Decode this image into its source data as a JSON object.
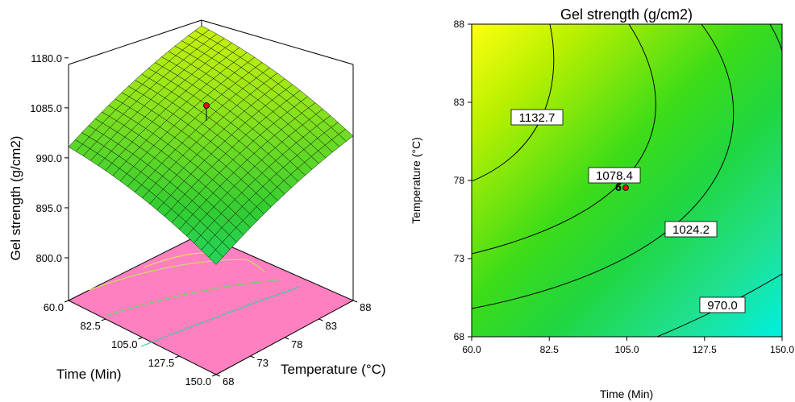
{
  "chart_data": [
    {
      "type": "surface3d",
      "zlabel": "Gel strength (g/cm2)",
      "xlabel": "Time (Min)",
      "ylabel": "Temperature (°C)",
      "z_ticks": [
        "800.0",
        "895.0",
        "990.0",
        "1085.0",
        "1180.0"
      ],
      "x_ticks": [
        "60.0",
        "82.5",
        "105.0",
        "127.5",
        "150.0"
      ],
      "y_ticks": [
        "68",
        "73",
        "78",
        "83",
        "88"
      ],
      "xlim": [
        60,
        150
      ],
      "ylim": [
        68,
        88
      ],
      "zlim": [
        800,
        1180
      ],
      "corner_values": [
        {
          "time": 60,
          "temp": 88,
          "z": 1180
        },
        {
          "time": 150,
          "temp": 88,
          "z": 1040
        },
        {
          "time": 60,
          "temp": 68,
          "z": 1005
        },
        {
          "time": 150,
          "temp": 68,
          "z": 865
        }
      ],
      "design_point": {
        "time": 105,
        "temp": 78,
        "z": 1078.4
      },
      "surface_colors": {
        "high": "#ffff00",
        "mid": "#33cc33",
        "low": "#00ddc8"
      },
      "base_color": "#ff80c0"
    },
    {
      "type": "contour",
      "title": "Gel strength (g/cm2)",
      "xlabel": "Time (Min)",
      "ylabel": "Temperature (°C)",
      "x_ticks": [
        "60.0",
        "82.5",
        "105.0",
        "127.5",
        "150.0"
      ],
      "y_ticks": [
        "68",
        "73",
        "78",
        "83",
        "88"
      ],
      "xlim": [
        60,
        150
      ],
      "ylim": [
        68,
        88
      ],
      "contour_labels": [
        "1132.7",
        "1078.4",
        "1024.2",
        "970.0"
      ],
      "point_label": "6",
      "point": {
        "time": 105,
        "temp": 77.5
      }
    }
  ]
}
